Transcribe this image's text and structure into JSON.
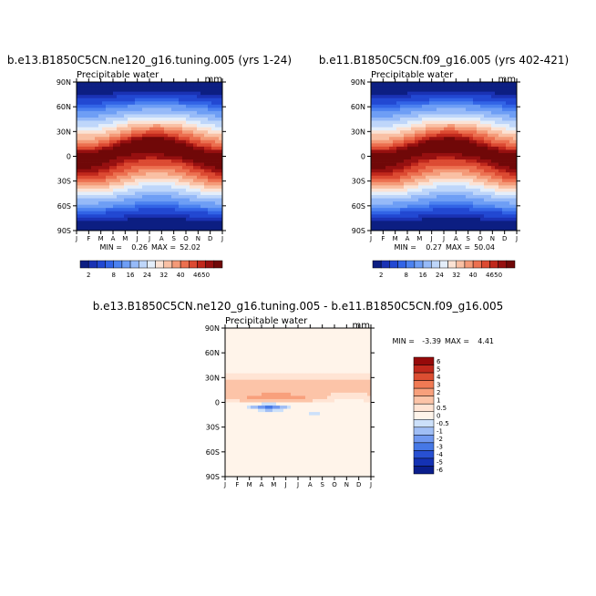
{
  "chart_data": [
    {
      "type": "heatmap",
      "title": "b.e13.B1850C5CN.ne120_g16.tuning.005 (yrs 1-24)",
      "subtitle": "Precipitable water",
      "units": "mm",
      "x_ticks": [
        "J",
        "F",
        "M",
        "A",
        "M",
        "J",
        "J",
        "A",
        "S",
        "O",
        "N",
        "D",
        "J"
      ],
      "y_ticks": [
        "90N",
        "60N",
        "30N",
        "0",
        "30S",
        "60S",
        "90S"
      ],
      "stats": {
        "min_label": "MIN =",
        "min": "0.26",
        "max_label": "MAX =",
        "max": "52.02"
      },
      "colorbar": {
        "labels": [
          "2",
          "8",
          "16",
          "24",
          "32",
          "40",
          "46",
          "50"
        ]
      }
    },
    {
      "type": "heatmap",
      "title": "b.e11.B1850C5CN.f09_g16.005 (yrs 402-421)",
      "subtitle": "Precipitable water",
      "units": "mm",
      "x_ticks": [
        "J",
        "F",
        "M",
        "A",
        "M",
        "J",
        "J",
        "A",
        "S",
        "O",
        "N",
        "D",
        "J"
      ],
      "y_ticks": [
        "90N",
        "60N",
        "30N",
        "0",
        "30S",
        "60S",
        "90S"
      ],
      "stats": {
        "min_label": "MIN =",
        "min": "0.27",
        "max_label": "MAX =",
        "max": "50.04"
      },
      "colorbar": {
        "labels": [
          "2",
          "8",
          "16",
          "24",
          "32",
          "40",
          "46",
          "50"
        ]
      }
    },
    {
      "type": "heatmap",
      "title": "b.e13.B1850C5CN.ne120_g16.tuning.005 - b.e11.B1850C5CN.f09_g16.005",
      "subtitle": "Precipitable water",
      "units": "mm",
      "x_ticks": [
        "J",
        "F",
        "M",
        "A",
        "M",
        "J",
        "J",
        "A",
        "S",
        "O",
        "N",
        "D",
        "J"
      ],
      "y_ticks": [
        "90N",
        "60N",
        "30N",
        "0",
        "30S",
        "60S",
        "90S"
      ],
      "stats": {
        "min_label": "MIN =",
        "min": "-3.39",
        "max_label": "MAX =",
        "max": "4.41"
      },
      "colorbar": {
        "labels": [
          "6",
          "5",
          "4",
          "3",
          "2",
          "1",
          "0.5",
          "0",
          "-0.5",
          "-1",
          "-2",
          "-3",
          "-4",
          "-5",
          "-6"
        ]
      }
    }
  ],
  "colors": {
    "abs_scale": [
      "#0c1e82",
      "#1a32b4",
      "#2248d2",
      "#3264e6",
      "#4c82f0",
      "#6e9ef5",
      "#96baf8",
      "#bed6fa",
      "#e4eefa",
      "#fbe2d4",
      "#f9c0a4",
      "#f49a78",
      "#ec7050",
      "#dc4a32",
      "#c0281c",
      "#961010",
      "#700808"
    ],
    "diff_scale": [
      "#0a1e8c",
      "#1432b4",
      "#2850d2",
      "#4678e6",
      "#7098f0",
      "#a0bef5",
      "#cce0fa",
      "#fff4ea",
      "#ffe4d4",
      "#fcc4a8",
      "#f8a07c",
      "#f07a54",
      "#dc4e32",
      "#c0281c",
      "#960a0a"
    ]
  }
}
